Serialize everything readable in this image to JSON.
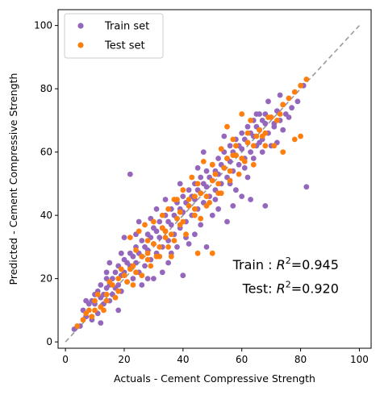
{
  "chart_data": {
    "type": "scatter",
    "xlabel": "Actuals - Cement Compressive Strength",
    "ylabel": "Predicted - Cement Compressive Strength",
    "xlim": [
      -2.5,
      104
    ],
    "ylim": [
      -2,
      105
    ],
    "xticks": [
      0,
      20,
      40,
      60,
      80,
      100
    ],
    "yticks": [
      0,
      20,
      40,
      60,
      80,
      100
    ],
    "grid": false,
    "legend_position": "top-left",
    "reference_line": {
      "style": "dashed",
      "color": "#999999",
      "from": [
        0,
        0
      ],
      "to": [
        100,
        100
      ]
    },
    "annotations": [
      {
        "prefix": "Train : ",
        "r2": "=0.945",
        "anchor": [
          93,
          23
        ]
      },
      {
        "prefix": "Test: ",
        "r2": "=0.920",
        "anchor": [
          93,
          15.5
        ]
      }
    ],
    "series": [
      {
        "name": "Train set",
        "color": "#9467bd",
        "points": [
          [
            3,
            4
          ],
          [
            5,
            5
          ],
          [
            6,
            10
          ],
          [
            7,
            13
          ],
          [
            7,
            8
          ],
          [
            8,
            12
          ],
          [
            9,
            13
          ],
          [
            9,
            7
          ],
          [
            10,
            12
          ],
          [
            10,
            15
          ],
          [
            11,
            16
          ],
          [
            11,
            9
          ],
          [
            12,
            14
          ],
          [
            12,
            18
          ],
          [
            13,
            12
          ],
          [
            13,
            15
          ],
          [
            14,
            17
          ],
          [
            14,
            20
          ],
          [
            15,
            13
          ],
          [
            15,
            18
          ],
          [
            16,
            20
          ],
          [
            16,
            15
          ],
          [
            17,
            22
          ],
          [
            17,
            17
          ],
          [
            18,
            18
          ],
          [
            18,
            24
          ],
          [
            19,
            21
          ],
          [
            19,
            16
          ],
          [
            20,
            22
          ],
          [
            20,
            26
          ],
          [
            21,
            19
          ],
          [
            21,
            25
          ],
          [
            22,
            24
          ],
          [
            22,
            28
          ],
          [
            23,
            20
          ],
          [
            23,
            27
          ],
          [
            24,
            25
          ],
          [
            24,
            30
          ],
          [
            25,
            22
          ],
          [
            25,
            28
          ],
          [
            26,
            27
          ],
          [
            26,
            32
          ],
          [
            27,
            24
          ],
          [
            27,
            30
          ],
          [
            28,
            29
          ],
          [
            28,
            34
          ],
          [
            29,
            26
          ],
          [
            29,
            33
          ],
          [
            30,
            31
          ],
          [
            30,
            36
          ],
          [
            31,
            28
          ],
          [
            31,
            35
          ],
          [
            32,
            33
          ],
          [
            32,
            38
          ],
          [
            33,
            30
          ],
          [
            33,
            36
          ],
          [
            34,
            35
          ],
          [
            34,
            40
          ],
          [
            35,
            32
          ],
          [
            35,
            38
          ],
          [
            36,
            37
          ],
          [
            36,
            42
          ],
          [
            37,
            34
          ],
          [
            37,
            40
          ],
          [
            38,
            39
          ],
          [
            38,
            44
          ],
          [
            39,
            36
          ],
          [
            39,
            42
          ],
          [
            40,
            41
          ],
          [
            40,
            46
          ],
          [
            41,
            38
          ],
          [
            41,
            44
          ],
          [
            42,
            43
          ],
          [
            42,
            48
          ],
          [
            43,
            40
          ],
          [
            43,
            46
          ],
          [
            44,
            45
          ],
          [
            44,
            50
          ],
          [
            45,
            42
          ],
          [
            45,
            48
          ],
          [
            46,
            47
          ],
          [
            46,
            52
          ],
          [
            47,
            44
          ],
          [
            47,
            50
          ],
          [
            48,
            49
          ],
          [
            48,
            54
          ],
          [
            49,
            46
          ],
          [
            49,
            52
          ],
          [
            50,
            51
          ],
          [
            50,
            56
          ],
          [
            51,
            48
          ],
          [
            51,
            54
          ],
          [
            52,
            53
          ],
          [
            52,
            58
          ],
          [
            53,
            50
          ],
          [
            53,
            56
          ],
          [
            54,
            55
          ],
          [
            54,
            60
          ],
          [
            55,
            52
          ],
          [
            55,
            58
          ],
          [
            56,
            57
          ],
          [
            56,
            62
          ],
          [
            57,
            54
          ],
          [
            57,
            60
          ],
          [
            58,
            59
          ],
          [
            58,
            64
          ],
          [
            59,
            56
          ],
          [
            59,
            62
          ],
          [
            60,
            61
          ],
          [
            60,
            66
          ],
          [
            61,
            58
          ],
          [
            61,
            64
          ],
          [
            62,
            63
          ],
          [
            62,
            68
          ],
          [
            63,
            60
          ],
          [
            63,
            66
          ],
          [
            64,
            65
          ],
          [
            64,
            70
          ],
          [
            65,
            62
          ],
          [
            65,
            68
          ],
          [
            66,
            67
          ],
          [
            66,
            72
          ],
          [
            67,
            64
          ],
          [
            67,
            70
          ],
          [
            68,
            69
          ],
          [
            68,
            72
          ],
          [
            69,
            66
          ],
          [
            70,
            71
          ],
          [
            71,
            68
          ],
          [
            72,
            73
          ],
          [
            73,
            70
          ],
          [
            74,
            75
          ],
          [
            75,
            72
          ],
          [
            76,
            77
          ],
          [
            77,
            74
          ],
          [
            78,
            79
          ],
          [
            79,
            76
          ],
          [
            81,
            81
          ],
          [
            22,
            53
          ],
          [
            82,
            49
          ],
          [
            68,
            43
          ],
          [
            63,
            45
          ],
          [
            66,
            63
          ],
          [
            40,
            21
          ],
          [
            42,
            31
          ],
          [
            30,
            20
          ],
          [
            48,
            30
          ],
          [
            55,
            38
          ],
          [
            60,
            46
          ],
          [
            15,
            25
          ],
          [
            20,
            33
          ],
          [
            25,
            38
          ],
          [
            35,
            25
          ],
          [
            45,
            55
          ],
          [
            50,
            40
          ],
          [
            58,
            48
          ],
          [
            28,
            20
          ],
          [
            33,
            22
          ],
          [
            38,
            30
          ],
          [
            52,
            42
          ],
          [
            62,
            52
          ],
          [
            70,
            62
          ],
          [
            18,
            10
          ],
          [
            12,
            6
          ],
          [
            26,
            18
          ],
          [
            44,
            34
          ],
          [
            57,
            43
          ],
          [
            65,
            72
          ],
          [
            54,
            65
          ],
          [
            47,
            60
          ],
          [
            39,
            50
          ],
          [
            31,
            42
          ],
          [
            24,
            34
          ],
          [
            69,
            76
          ],
          [
            72,
            63
          ],
          [
            74,
            67
          ],
          [
            76,
            71
          ],
          [
            73,
            78
          ],
          [
            71,
            69
          ],
          [
            36,
            28
          ],
          [
            41,
            33
          ],
          [
            46,
            37
          ],
          [
            51,
            45
          ],
          [
            56,
            50
          ],
          [
            61,
            55
          ],
          [
            64,
            58
          ],
          [
            67,
            60
          ],
          [
            29,
            39
          ],
          [
            34,
            45
          ],
          [
            19,
            28
          ],
          [
            14,
            22
          ]
        ]
      },
      {
        "name": "Test set",
        "color": "#ff7f0e",
        "points": [
          [
            4,
            5
          ],
          [
            8,
            10
          ],
          [
            10,
            13
          ],
          [
            12,
            11
          ],
          [
            14,
            15
          ],
          [
            16,
            18
          ],
          [
            18,
            16
          ],
          [
            20,
            21
          ],
          [
            22,
            23
          ],
          [
            24,
            22
          ],
          [
            26,
            27
          ],
          [
            28,
            26
          ],
          [
            30,
            31
          ],
          [
            32,
            30
          ],
          [
            34,
            35
          ],
          [
            36,
            34
          ],
          [
            38,
            39
          ],
          [
            40,
            38
          ],
          [
            42,
            43
          ],
          [
            44,
            42
          ],
          [
            46,
            47
          ],
          [
            48,
            46
          ],
          [
            50,
            51
          ],
          [
            52,
            50
          ],
          [
            54,
            55
          ],
          [
            56,
            54
          ],
          [
            58,
            59
          ],
          [
            60,
            58
          ],
          [
            62,
            63
          ],
          [
            64,
            62
          ],
          [
            66,
            67
          ],
          [
            68,
            66
          ],
          [
            70,
            71
          ],
          [
            72,
            70
          ],
          [
            74,
            75
          ],
          [
            76,
            77
          ],
          [
            78,
            79
          ],
          [
            80,
            81
          ],
          [
            82,
            83
          ],
          [
            25,
            35
          ],
          [
            30,
            38
          ],
          [
            35,
            42
          ],
          [
            40,
            48
          ],
          [
            22,
            33
          ],
          [
            27,
            37
          ],
          [
            33,
            40
          ],
          [
            37,
            45
          ],
          [
            43,
            52
          ],
          [
            47,
            57
          ],
          [
            53,
            61
          ],
          [
            57,
            64
          ],
          [
            63,
            70
          ],
          [
            68,
            62
          ],
          [
            71,
            62
          ],
          [
            74,
            60
          ],
          [
            78,
            64
          ],
          [
            80,
            65
          ],
          [
            58,
            62
          ],
          [
            55,
            68
          ],
          [
            60,
            72
          ],
          [
            65,
            65
          ],
          [
            38,
            45
          ],
          [
            45,
            50
          ],
          [
            50,
            56
          ],
          [
            55,
            58
          ],
          [
            28,
            32
          ],
          [
            33,
            36
          ],
          [
            39,
            41
          ],
          [
            42,
            45
          ],
          [
            24,
            29
          ],
          [
            19,
            23
          ],
          [
            15,
            19
          ],
          [
            11,
            15
          ],
          [
            7,
            9
          ],
          [
            45,
            28
          ],
          [
            50,
            28
          ],
          [
            36,
            27
          ],
          [
            41,
            34
          ],
          [
            46,
            39
          ],
          [
            31,
            27
          ],
          [
            21,
            19
          ],
          [
            17,
            14
          ],
          [
            13,
            10
          ],
          [
            9,
            8
          ],
          [
            59,
            53
          ],
          [
            64,
            56
          ],
          [
            69,
            71
          ],
          [
            73,
            72
          ],
          [
            49,
            44
          ],
          [
            53,
            47
          ],
          [
            35,
            30
          ],
          [
            29,
            24
          ],
          [
            23,
            18
          ],
          [
            26,
            21
          ],
          [
            32,
            27
          ],
          [
            37,
            32
          ],
          [
            44,
            40
          ],
          [
            48,
            43
          ],
          [
            52,
            47
          ],
          [
            56,
            51
          ],
          [
            61,
            57
          ],
          [
            67,
            65
          ],
          [
            62,
            66
          ],
          [
            57,
            59
          ],
          [
            51,
            53
          ],
          [
            44,
            46
          ],
          [
            39,
            37
          ],
          [
            34,
            33
          ],
          [
            28,
            28
          ],
          [
            23,
            24
          ],
          [
            18,
            20
          ],
          [
            14,
            13
          ],
          [
            10,
            10
          ],
          [
            6,
            7
          ]
        ]
      }
    ]
  }
}
